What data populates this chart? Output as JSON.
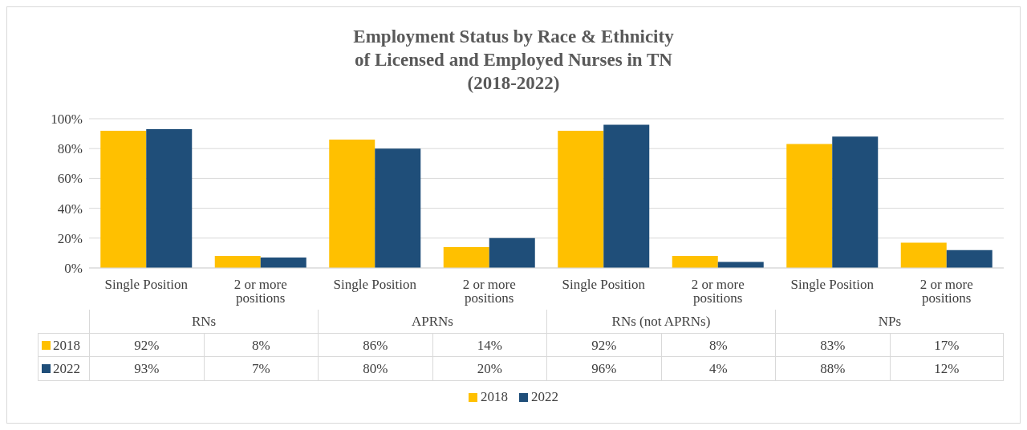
{
  "chart_data": {
    "type": "bar",
    "title": "Employment Status by Race & Ethnicity\nof Licensed and Employed Nurses in TN\n(2018-2022)",
    "categories": [
      "Single Position",
      "2 or more positions",
      "Single Position",
      "2 or more positions",
      "Single Position",
      "2 or more positions",
      "Single Position",
      "2 or more positions"
    ],
    "annotations": [
      "RNs",
      "APRNs",
      "RNs (not APRNs)",
      "NPs"
    ],
    "series": [
      {
        "name": "2018",
        "color": "#ffc000",
        "values": [
          92,
          8,
          86,
          14,
          92,
          8,
          83,
          17
        ],
        "value_labels": [
          "92%",
          "8%",
          "86%",
          "14%",
          "92%",
          "8%",
          "83%",
          "17%"
        ]
      },
      {
        "name": "2022",
        "color": "#1f4e79",
        "values": [
          93,
          7,
          80,
          20,
          96,
          4,
          88,
          12
        ],
        "value_labels": [
          "93%",
          "7%",
          "80%",
          "20%",
          "96%",
          "4%",
          "88%",
          "12%"
        ]
      }
    ],
    "ylim": [
      0,
      100
    ],
    "yticks": [
      {
        "value": 0,
        "label": "0%"
      },
      {
        "value": 20,
        "label": "20%"
      },
      {
        "value": 40,
        "label": "40%"
      },
      {
        "value": 60,
        "label": "60%"
      },
      {
        "value": 80,
        "label": "80%"
      },
      {
        "value": 100,
        "label": "100%"
      }
    ],
    "grid": "y",
    "legend": "bottom"
  }
}
